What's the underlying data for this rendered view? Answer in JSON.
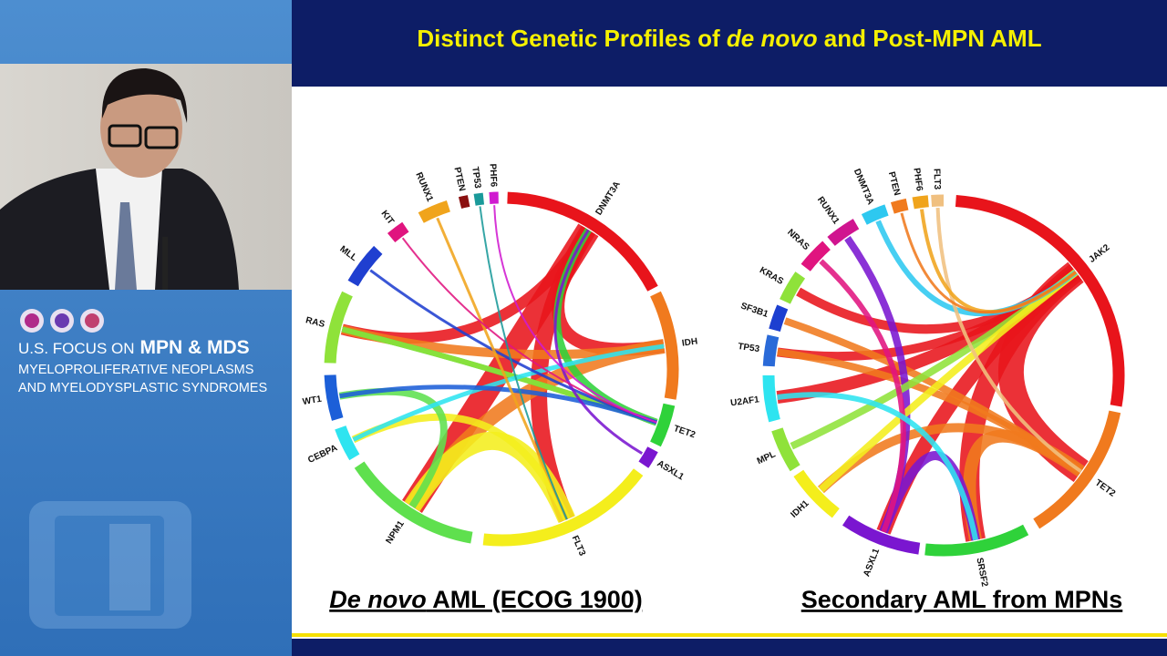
{
  "branding": {
    "line1": "U.S. FOCUS ON",
    "line1b": "MPN & MDS",
    "line2": "MYELOPROLIFERATIVE NEOPLASMS",
    "line3": "AND MYELODYSPLASTIC SYNDROMES"
  },
  "slide": {
    "title": [
      "Distinct Genetic Profiles of ",
      "de novo",
      " and Post-MPN AML"
    ],
    "left": {
      "caption": [
        "De novo",
        " AML (ECOG 1900)"
      ],
      "genes": [
        {
          "label": "DNMT3A",
          "color": "#e8141b"
        },
        {
          "label": "IDH",
          "color": "#f07a1e"
        },
        {
          "label": "TET2",
          "color": "#2fd23a"
        },
        {
          "label": "ASXL1",
          "color": "#7a16d0"
        },
        {
          "label": "FLT3",
          "color": "#f4ee1c"
        },
        {
          "label": "NPM1",
          "color": "#5fe04e"
        },
        {
          "label": "CEBPA",
          "color": "#2ee4f0"
        },
        {
          "label": "WT1",
          "color": "#1c5fd8"
        },
        {
          "label": "RAS",
          "color": "#8fe23a"
        },
        {
          "label": "MLL",
          "color": "#1f3fd0"
        },
        {
          "label": "KIT",
          "color": "#e0147f"
        },
        {
          "label": "RUNX1",
          "color": "#f0a41c"
        },
        {
          "label": "PTEN",
          "color": "#8a1010"
        },
        {
          "label": "TP53",
          "color": "#1a9a9a"
        },
        {
          "label": "PHF6",
          "color": "#d01ad0"
        }
      ]
    },
    "right": {
      "caption": "Secondary AML from MPNs",
      "genes": [
        {
          "label": "JAK2",
          "color": "#e8141b"
        },
        {
          "label": "TET2",
          "color": "#f07a1e"
        },
        {
          "label": "SRSF2",
          "color": "#2fd23a"
        },
        {
          "label": "ASXL1",
          "color": "#7a16d0"
        },
        {
          "label": "IDH1",
          "color": "#f4ee1c"
        },
        {
          "label": "MPL",
          "color": "#8fe23a"
        },
        {
          "label": "U2AF1",
          "color": "#2ee4f0"
        },
        {
          "label": "TP53",
          "color": "#2a6ad8"
        },
        {
          "label": "SF3B1",
          "color": "#1c3fd0"
        },
        {
          "label": "KRAS",
          "color": "#8fe23a"
        },
        {
          "label": "NRAS",
          "color": "#e0147f"
        },
        {
          "label": "RUNX1",
          "color": "#d0148f"
        },
        {
          "label": "DNMT3A",
          "color": "#2ec8f0"
        },
        {
          "label": "PTEN",
          "color": "#f07a1e"
        },
        {
          "label": "PHF6",
          "color": "#f0a41c"
        },
        {
          "label": "FLT3",
          "color": "#f0c080"
        }
      ]
    }
  }
}
